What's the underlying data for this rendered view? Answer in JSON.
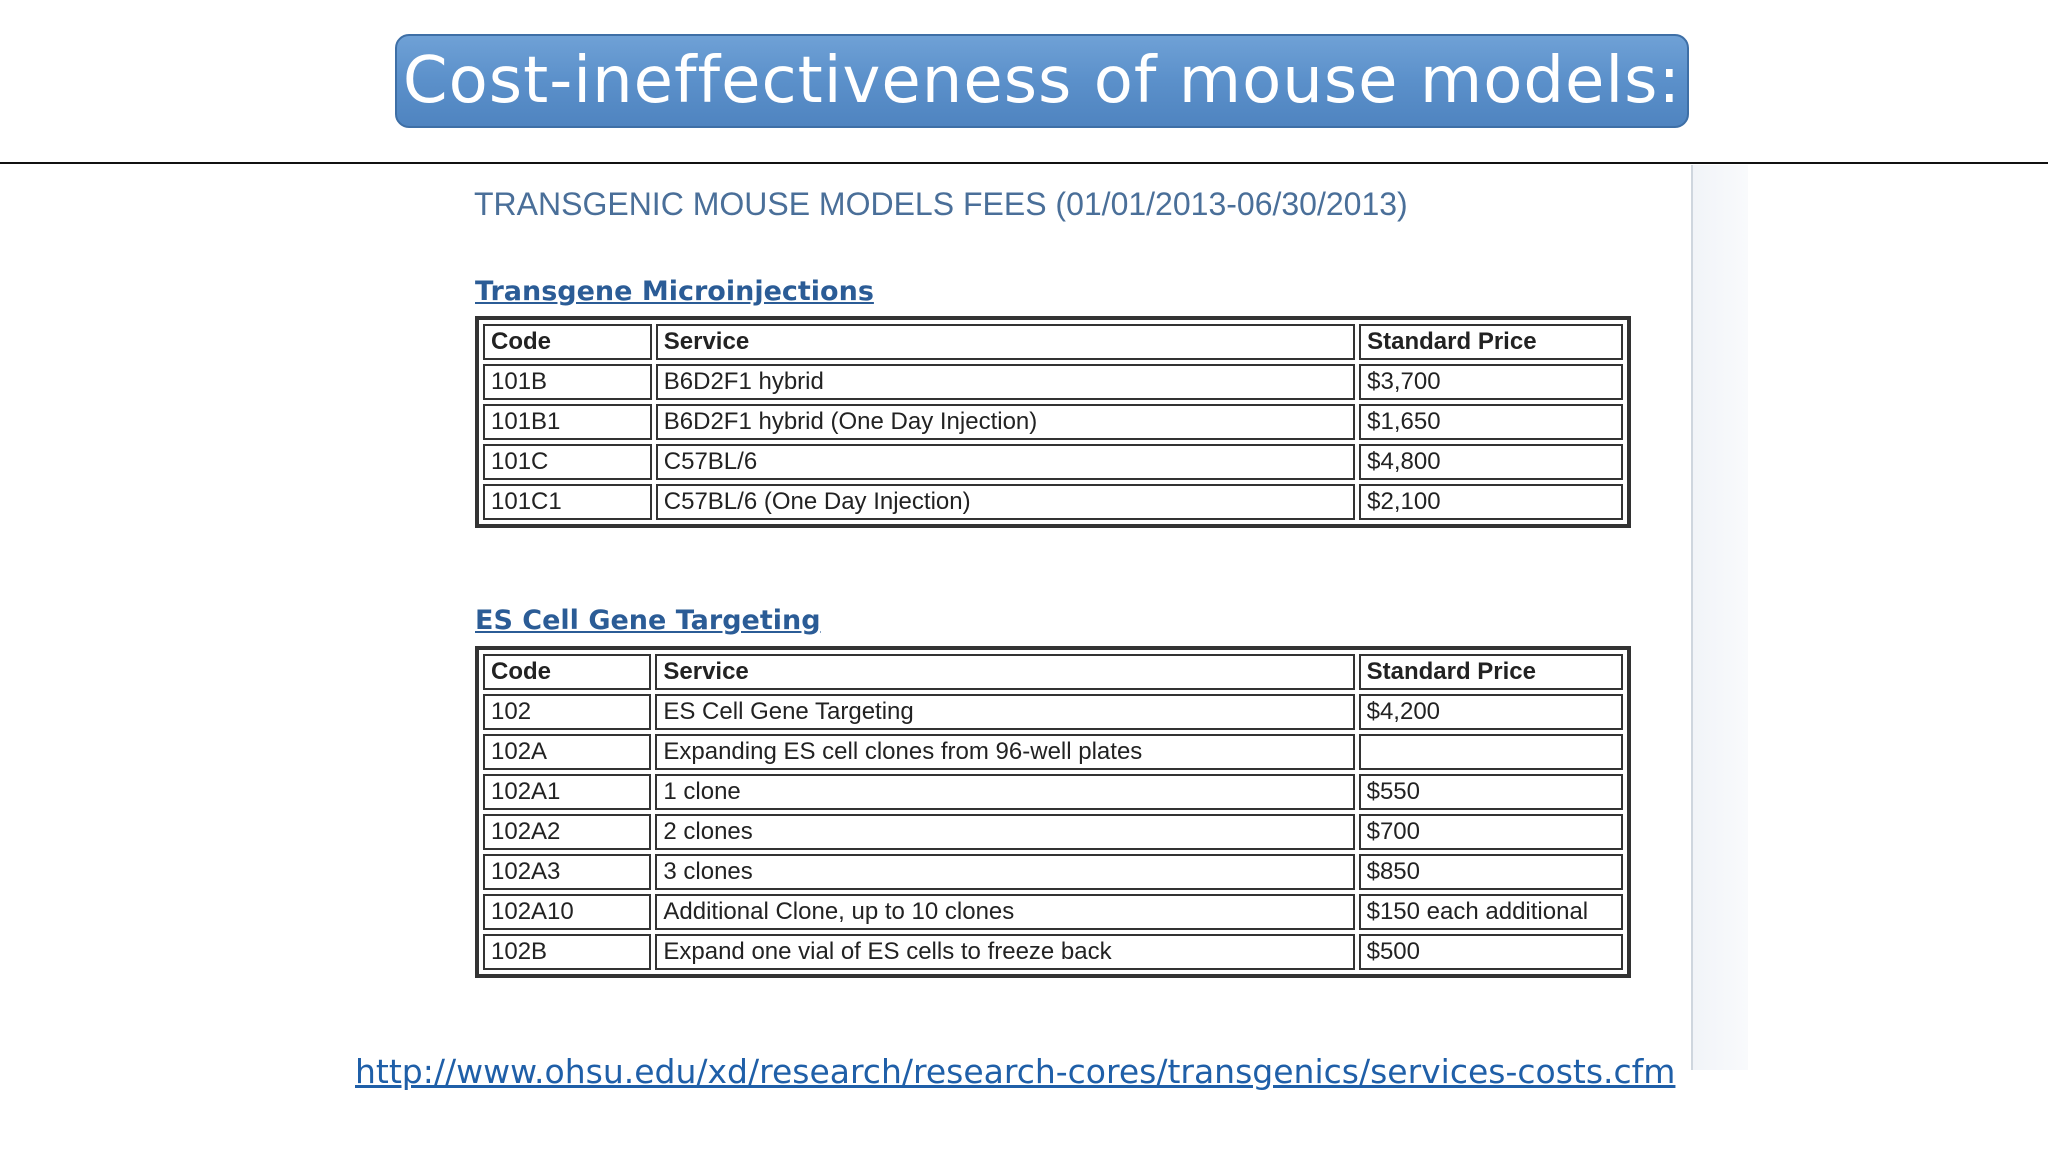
{
  "slide": {
    "title": "Cost-ineffectiveness of mouse models:",
    "source_url": "http://www.ohsu.edu/xd/research/research-cores/transgenics/services-costs.cfm"
  },
  "screenshot": {
    "heading": "TRANSGENIC MOUSE MODELS FEES  (01/01/2013-06/30/2013)",
    "sections": [
      {
        "title": "Transgene Microinjections",
        "columns": [
          "Code",
          "Service",
          "Standard Price"
        ],
        "rows": [
          [
            "101B",
            "B6D2F1 hybrid",
            "$3,700"
          ],
          [
            "101B1",
            "B6D2F1 hybrid (One Day Injection)",
            "$1,650"
          ],
          [
            "101C",
            "C57BL/6",
            "$4,800"
          ],
          [
            "101C1",
            "C57BL/6 (One Day Injection)",
            "$2,100"
          ]
        ]
      },
      {
        "title": "ES Cell Gene Targeting",
        "columns": [
          "Code",
          "Service",
          "Standard Price"
        ],
        "rows": [
          [
            "102",
            "ES Cell Gene Targeting",
            "$4,200"
          ],
          [
            "102A",
            "Expanding ES cell clones from 96-well plates",
            ""
          ],
          [
            "102A1",
            "1 clone",
            "$550"
          ],
          [
            "102A2",
            "2 clones",
            "$700"
          ],
          [
            "102A3",
            "3 clones",
            "$850"
          ],
          [
            "102A10",
            "Additional Clone, up to 10 clones",
            "$150 each additional"
          ],
          [
            "102B",
            "Expand one vial of ES cells to freeze back",
            "$500"
          ]
        ]
      }
    ]
  }
}
